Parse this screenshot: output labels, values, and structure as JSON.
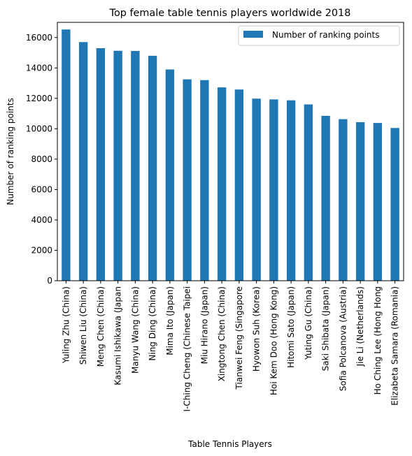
{
  "chart_data": {
    "type": "bar",
    "title": "Top female table tennis players worldwide 2018",
    "xlabel": "Table Tennis Players",
    "ylabel": "Number of ranking points",
    "ylim": [
      0,
      17000
    ],
    "yticks": [
      0,
      2000,
      4000,
      6000,
      8000,
      10000,
      12000,
      14000,
      16000
    ],
    "grid": false,
    "legend_position": "top-right",
    "bar_color": "#1f77b4",
    "categories": [
      "Yuling Zhu (China)",
      "Shiwen Liu (China)",
      "Meng Chen (China)",
      "Kasumi Ishikawa (Japan",
      "Manyu Wang (China)",
      "Ning Ding (China)",
      "Mima Ito (Japan)",
      "I-Ching Cheng (Chinese Taipei",
      "Miu Hirano (Japan)",
      "Xingtong Chen (China)",
      "Tianwei Feng (Singapore",
      "Hyowon Suh (Korea)",
      "Hoi Kem Doo (Hong Kong)",
      "Hitomi Sato (Japan)",
      "Yuting Gu (China)",
      "Saki Shibata (Japan)",
      "Sofia Polcanova (Austria)",
      "Jie Li (Netherlands)",
      "Ho Ching Lee (Hong Hong",
      "Elizabeta Samara (Romania)"
    ],
    "series": [
      {
        "name": "Number of ranking points",
        "values": [
          16530,
          15700,
          15300,
          15130,
          15120,
          14800,
          13900,
          13250,
          13200,
          12720,
          12580,
          11980,
          11930,
          11870,
          11600,
          10850,
          10630,
          10430,
          10380,
          10050
        ]
      }
    ]
  }
}
